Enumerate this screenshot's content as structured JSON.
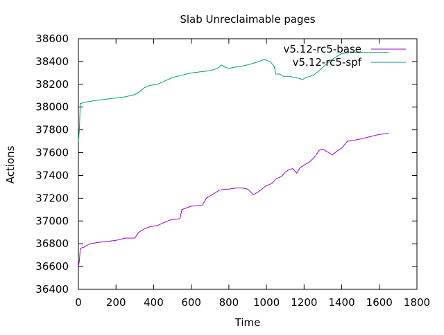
{
  "chart_data": {
    "type": "line",
    "title": "Slab Unreclaimable pages",
    "xlabel": "Time",
    "ylabel": "Actions",
    "xlim": [
      0,
      1800
    ],
    "ylim": [
      36400,
      38600
    ],
    "xticks": [
      0,
      200,
      400,
      600,
      800,
      1000,
      1200,
      1400,
      1600,
      1800
    ],
    "yticks": [
      36400,
      36600,
      36800,
      37000,
      37200,
      37400,
      37600,
      37800,
      38000,
      38200,
      38400,
      38600
    ],
    "grid": false,
    "legend": "top-right",
    "series": [
      {
        "name": "v5.12-rc5-base",
        "color": "#9400d3",
        "x": [
          0,
          5,
          10,
          30,
          60,
          100,
          150,
          200,
          250,
          300,
          320,
          350,
          380,
          420,
          460,
          490,
          540,
          550,
          600,
          660,
          680,
          700,
          750,
          780,
          800,
          840,
          870,
          900,
          930,
          960,
          990,
          1000,
          1030,
          1050,
          1080,
          1100,
          1120,
          1140,
          1160,
          1180,
          1200,
          1230,
          1260,
          1280,
          1300,
          1330,
          1350,
          1380,
          1400,
          1430,
          1470,
          1500,
          1550,
          1600,
          1650
        ],
        "y": [
          36600,
          36650,
          36760,
          36770,
          36800,
          36810,
          36820,
          36830,
          36850,
          36850,
          36900,
          36930,
          36950,
          36960,
          36990,
          37010,
          37020,
          37100,
          37130,
          37140,
          37200,
          37220,
          37270,
          37280,
          37280,
          37290,
          37290,
          37280,
          37230,
          37260,
          37300,
          37310,
          37330,
          37370,
          37390,
          37430,
          37450,
          37460,
          37420,
          37470,
          37490,
          37520,
          37570,
          37620,
          37630,
          37600,
          37580,
          37620,
          37640,
          37700,
          37710,
          37720,
          37740,
          37760,
          37770
        ]
      },
      {
        "name": "v5.12-rc5-spf",
        "color": "#009e73",
        "x": [
          0,
          5,
          10,
          30,
          60,
          100,
          150,
          200,
          250,
          300,
          320,
          350,
          380,
          420,
          460,
          500,
          550,
          600,
          650,
          700,
          740,
          760,
          780,
          800,
          830,
          870,
          900,
          940,
          960,
          990,
          1000,
          1020,
          1040,
          1050,
          1070,
          1090,
          1120,
          1150,
          1180,
          1190,
          1210,
          1250,
          1280,
          1300,
          1320,
          1340,
          1360,
          1380,
          1400,
          1450,
          1500,
          1550,
          1600,
          1650
        ],
        "y": [
          37700,
          37800,
          38030,
          38040,
          38050,
          38060,
          38070,
          38080,
          38090,
          38110,
          38130,
          38170,
          38190,
          38200,
          38230,
          38260,
          38280,
          38300,
          38310,
          38320,
          38340,
          38370,
          38350,
          38340,
          38350,
          38360,
          38370,
          38390,
          38400,
          38420,
          38410,
          38400,
          38360,
          38290,
          38290,
          38270,
          38270,
          38260,
          38250,
          38240,
          38260,
          38280,
          38320,
          38350,
          38380,
          38410,
          38430,
          38450,
          38470,
          38480,
          38480,
          38480,
          38480,
          38480
        ]
      }
    ]
  }
}
